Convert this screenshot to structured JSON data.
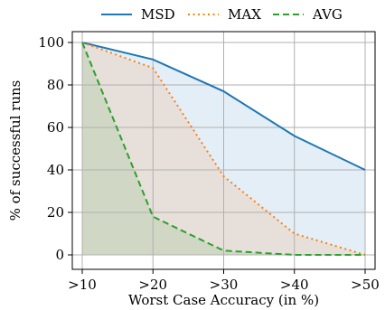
{
  "chart_data": {
    "type": "line",
    "x": [
      ">10",
      ">20",
      ">30",
      ">40",
      ">50"
    ],
    "xlabel": "Worst Case Accuracy (in %)",
    "ylabel": "% of successful runs",
    "ylim": [
      0,
      100
    ],
    "yticks": [
      0,
      20,
      40,
      60,
      80,
      100
    ],
    "grid": true,
    "legend_position": "top",
    "series": [
      {
        "name": "MSD",
        "values": [
          100,
          92,
          77,
          56,
          40
        ],
        "color": "#1f77b4",
        "style": "solid",
        "fill": "#1f77b4"
      },
      {
        "name": "MAX",
        "values": [
          100,
          88,
          37,
          10,
          0
        ],
        "color": "#ff7f0e",
        "style": "dotted",
        "fill": "#ff7f0e"
      },
      {
        "name": "AVG",
        "values": [
          100,
          18,
          2,
          0,
          0
        ],
        "color": "#2ca02c",
        "style": "dashed",
        "fill": "#2ca02c"
      }
    ]
  }
}
